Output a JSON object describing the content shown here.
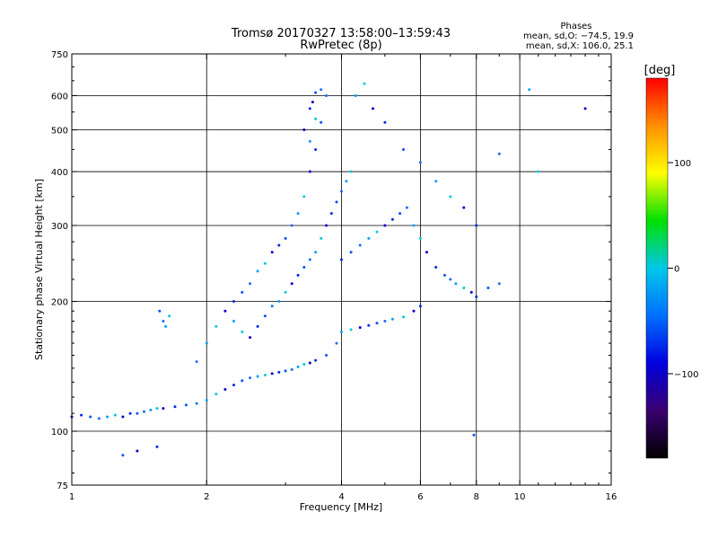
{
  "chart_data": {
    "type": "scatter",
    "title": "Tromsø 20170327 13:58:00–13:59:43",
    "subtitle": "RwPretec (8p)",
    "xlabel": "Frequency [MHz]",
    "ylabel": "Stationary phase Virtual Height [km]",
    "x_scale": "log",
    "y_scale": "log",
    "xlim": [
      1,
      16
    ],
    "ylim": [
      75,
      750
    ],
    "x_ticks": [
      1,
      2,
      4,
      6,
      8,
      10,
      16
    ],
    "x_tick_labels": [
      "1",
      "2",
      "4",
      "6",
      "8",
      "10",
      "16"
    ],
    "y_ticks": [
      75,
      100,
      200,
      300,
      400,
      500,
      600,
      750
    ],
    "y_tick_labels": [
      "75",
      "100",
      "200",
      "300",
      "400",
      "500",
      "600",
      "750"
    ],
    "grid_x": [
      2,
      4,
      6,
      8,
      10
    ],
    "grid_y": [
      100,
      200,
      300,
      400,
      500,
      600
    ],
    "grid": true,
    "stats": {
      "header": "Phases",
      "line_o": "mean, sd,O: −74.5, 19.9",
      "line_x": "mean, sd,X: 106.0, 25.1"
    },
    "colorbar": {
      "label": "[deg]",
      "ticks": [
        100,
        0,
        -100
      ],
      "tick_labels": [
        "100",
        "0",
        "−100"
      ],
      "range": [
        -180,
        180
      ],
      "colors": [
        "#000000",
        "#3a0070",
        "#0000e0",
        "#0070ff",
        "#00c8e8",
        "#00e000",
        "#ffff00",
        "#ff9000",
        "#ff0000"
      ]
    },
    "series": [
      {
        "points": [
          [
            1.0,
            108
          ],
          [
            1.05,
            109
          ],
          [
            1.1,
            108
          ],
          [
            1.15,
            107
          ],
          [
            1.2,
            108
          ],
          [
            1.25,
            109
          ],
          [
            1.3,
            108
          ],
          [
            1.35,
            110
          ],
          [
            1.4,
            110
          ],
          [
            1.45,
            111
          ],
          [
            1.5,
            112
          ],
          [
            1.55,
            113
          ],
          [
            1.6,
            113
          ],
          [
            1.7,
            114
          ],
          [
            1.8,
            115
          ],
          [
            1.9,
            116
          ],
          [
            2.0,
            118
          ],
          [
            2.1,
            122
          ],
          [
            2.2,
            125
          ],
          [
            2.3,
            128
          ],
          [
            2.4,
            131
          ],
          [
            2.5,
            133
          ],
          [
            2.6,
            134
          ],
          [
            2.7,
            135
          ],
          [
            2.8,
            136
          ],
          [
            2.9,
            137
          ],
          [
            3.0,
            138
          ],
          [
            3.1,
            139
          ],
          [
            3.2,
            141
          ],
          [
            3.3,
            143
          ],
          [
            3.4,
            144
          ],
          [
            3.5,
            146
          ],
          [
            3.7,
            150
          ],
          [
            3.9,
            160
          ],
          [
            4.0,
            170
          ],
          [
            4.2,
            172
          ],
          [
            4.4,
            174
          ],
          [
            4.6,
            176
          ],
          [
            4.8,
            178
          ],
          [
            5.0,
            180
          ],
          [
            5.2,
            182
          ],
          [
            5.5,
            184
          ],
          [
            5.8,
            190
          ],
          [
            6.0,
            195
          ],
          [
            1.57,
            190
          ],
          [
            1.6,
            180
          ],
          [
            1.62,
            175
          ],
          [
            1.65,
            185
          ],
          [
            1.4,
            90
          ],
          [
            1.55,
            92
          ],
          [
            1.3,
            88
          ],
          [
            1.9,
            145
          ],
          [
            2.0,
            160
          ],
          [
            2.1,
            175
          ],
          [
            2.2,
            190
          ],
          [
            2.3,
            200
          ],
          [
            2.4,
            210
          ],
          [
            2.5,
            220
          ],
          [
            2.6,
            235
          ],
          [
            2.7,
            245
          ],
          [
            2.8,
            260
          ],
          [
            2.9,
            270
          ],
          [
            3.0,
            280
          ],
          [
            3.1,
            300
          ],
          [
            3.2,
            320
          ],
          [
            3.3,
            350
          ],
          [
            3.4,
            400
          ],
          [
            3.5,
            450
          ],
          [
            3.6,
            520
          ],
          [
            3.7,
            600
          ],
          [
            2.3,
            180
          ],
          [
            2.4,
            170
          ],
          [
            2.5,
            165
          ],
          [
            2.6,
            175
          ],
          [
            2.7,
            185
          ],
          [
            2.8,
            195
          ],
          [
            2.9,
            200
          ],
          [
            3.0,
            210
          ],
          [
            3.1,
            220
          ],
          [
            3.2,
            230
          ],
          [
            3.3,
            240
          ],
          [
            3.4,
            250
          ],
          [
            3.5,
            260
          ],
          [
            3.6,
            280
          ],
          [
            3.7,
            300
          ],
          [
            3.8,
            320
          ],
          [
            3.9,
            340
          ],
          [
            4.0,
            360
          ],
          [
            4.1,
            380
          ],
          [
            4.2,
            400
          ],
          [
            3.3,
            500
          ],
          [
            3.4,
            560
          ],
          [
            3.5,
            610
          ],
          [
            3.6,
            620
          ],
          [
            3.4,
            470
          ],
          [
            3.5,
            530
          ],
          [
            3.45,
            580
          ],
          [
            4.0,
            250
          ],
          [
            4.2,
            260
          ],
          [
            4.4,
            270
          ],
          [
            4.6,
            280
          ],
          [
            4.8,
            290
          ],
          [
            5.0,
            300
          ],
          [
            5.2,
            310
          ],
          [
            5.4,
            320
          ],
          [
            5.6,
            330
          ],
          [
            5.8,
            300
          ],
          [
            6.0,
            280
          ],
          [
            6.2,
            260
          ],
          [
            6.5,
            240
          ],
          [
            6.8,
            230
          ],
          [
            7.0,
            225
          ],
          [
            7.2,
            220
          ],
          [
            7.5,
            215
          ],
          [
            7.8,
            210
          ],
          [
            8.0,
            205
          ],
          [
            8.5,
            215
          ],
          [
            9.0,
            220
          ],
          [
            4.3,
            600
          ],
          [
            4.5,
            640
          ],
          [
            4.7,
            560
          ],
          [
            5.0,
            520
          ],
          [
            5.5,
            450
          ],
          [
            6.0,
            420
          ],
          [
            6.5,
            380
          ],
          [
            7.0,
            350
          ],
          [
            7.5,
            330
          ],
          [
            8.0,
            300
          ],
          [
            7.9,
            98
          ],
          [
            9.0,
            440
          ],
          [
            10.5,
            620
          ],
          [
            11.0,
            400
          ],
          [
            14.0,
            560
          ]
        ]
      }
    ]
  }
}
